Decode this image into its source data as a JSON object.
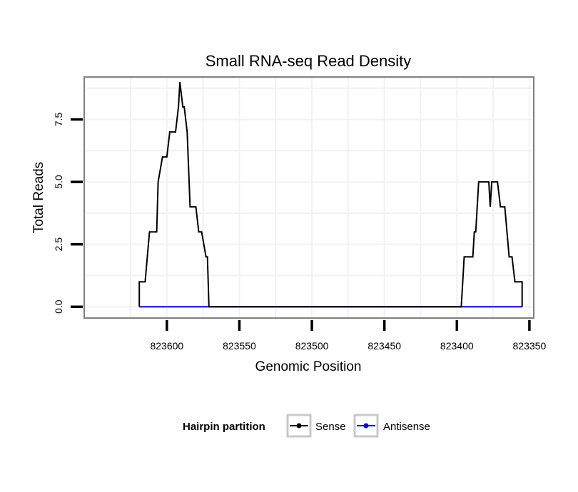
{
  "chart_data": {
    "type": "line",
    "title": "Small RNA-seq Read Density",
    "xlabel": "Genomic Position",
    "ylabel": "Total Reads",
    "xlim": [
      823657,
      823347
    ],
    "ylim": [
      -0.45,
      9.2
    ],
    "x_reversed": true,
    "xticks": [
      823600,
      823550,
      823500,
      823450,
      823400,
      823350
    ],
    "xtick_labels": [
      "823600",
      "823550",
      "823500",
      "823450",
      "823400",
      "823350"
    ],
    "yticks": [
      0,
      2.5,
      5,
      7.5
    ],
    "ytick_labels": [
      "0.0",
      "2.5",
      "5.0",
      "7.5"
    ],
    "grid": true,
    "legend": {
      "title": "Hairpin partition",
      "placement": "bottom"
    },
    "series": [
      {
        "name": "Sense",
        "color": "#000000",
        "x": [
          823619,
          823619,
          823617,
          823615,
          823612,
          823609,
          823607,
          823606,
          823603,
          823602,
          823600,
          823598,
          823597,
          823594,
          823592,
          823591,
          823589,
          823588,
          823586,
          823584,
          823582,
          823580,
          823578,
          823576,
          823573,
          823572,
          823571,
          823397,
          823395,
          823392,
          823389,
          823388,
          823387,
          823385,
          823381,
          823378,
          823377,
          823376,
          823373,
          823372,
          823370,
          823368,
          823367,
          823364,
          823362,
          823360,
          823357,
          823355,
          823355
        ],
        "y": [
          0,
          1,
          1,
          1,
          3,
          3,
          3,
          5,
          6,
          6,
          6,
          7,
          7,
          7,
          8,
          9,
          8,
          8,
          7,
          4,
          4,
          4,
          3,
          3,
          2,
          2,
          0,
          0,
          2,
          2,
          2,
          3,
          3,
          5,
          5,
          5,
          4,
          5,
          5,
          5,
          4,
          4,
          4,
          2,
          2,
          1,
          1,
          1,
          0
        ]
      },
      {
        "name": "Antisense",
        "color": "#0000ff",
        "x": [
          823619,
          823571,
          823397,
          823355
        ],
        "y": [
          0,
          0,
          0,
          0
        ]
      }
    ]
  }
}
